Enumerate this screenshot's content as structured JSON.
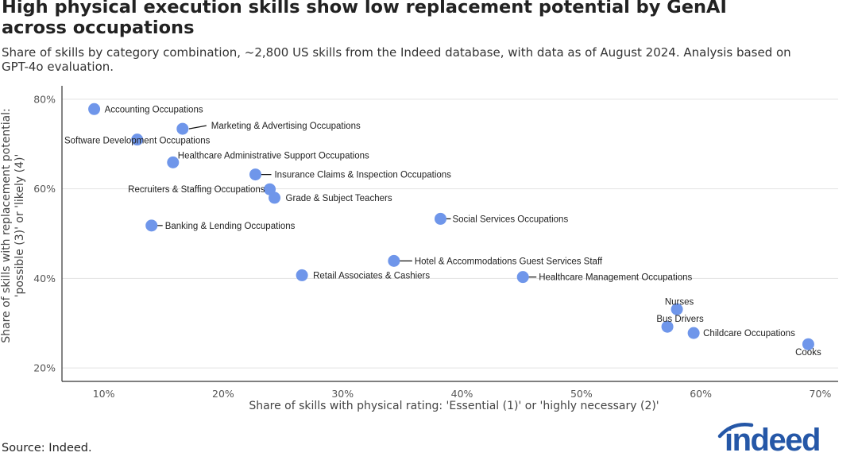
{
  "title": "High physical execution skills show low replacement potential by GenAI across occupations",
  "subtitle": "Share of skills by category combination, ~2,800 US skills from the Indeed database, with data as of August 2024. Analysis based on GPT-4o evaluation.",
  "source": "Source: Indeed.",
  "logo_text": "indeed",
  "colors": {
    "point": "#6f96ea",
    "grid": "#e3e3e3",
    "axis": "#333333",
    "brand": "#2557a7"
  },
  "chart_data": {
    "type": "scatter",
    "title": "High physical execution skills show low replacement potential by GenAI across occupations",
    "xlabel": "Share of skills with physical rating: 'Essential (1)' or 'highly necessary (2)'",
    "ylabel": [
      "Share of skills with replacement potential:",
      "'possible (3)' or 'likely (4)'"
    ],
    "xlim": [
      6.5,
      71.5
    ],
    "ylim": [
      17,
      83
    ],
    "xticks": [
      10,
      20,
      30,
      40,
      50,
      60,
      70
    ],
    "xtick_labels": [
      "10%",
      "20%",
      "30%",
      "40%",
      "50%",
      "60%",
      "70%"
    ],
    "yticks": [
      20,
      40,
      60,
      80
    ],
    "ytick_labels": [
      "20%",
      "40%",
      "60%",
      "80%"
    ],
    "grid": "horizontal",
    "points": [
      {
        "label": "Accounting Occupations",
        "x": 9.2,
        "y": 77.8
      },
      {
        "label": "Marketing & Advertising Occupations",
        "x": 16.6,
        "y": 73.4
      },
      {
        "label": "Software Development Occupations",
        "x": 12.8,
        "y": 71.0
      },
      {
        "label": "Healthcare Administrative Support Occupations",
        "x": 15.8,
        "y": 65.9
      },
      {
        "label": "Insurance Claims & Inspection Occupations",
        "x": 22.7,
        "y": 63.2
      },
      {
        "label": "Recruiters & Staffing Occupations",
        "x": 23.9,
        "y": 59.9
      },
      {
        "label": "Grade & Subject Teachers",
        "x": 24.3,
        "y": 58.0
      },
      {
        "label": "Social Services Occupations",
        "x": 38.2,
        "y": 53.3
      },
      {
        "label": "Banking & Lending Occupations",
        "x": 14.0,
        "y": 51.8
      },
      {
        "label": "Hotel & Accommodations Guest Services Staff",
        "x": 34.3,
        "y": 43.9
      },
      {
        "label": "Retail Associates & Cashiers",
        "x": 26.6,
        "y": 40.7
      },
      {
        "label": "Healthcare Management Occupations",
        "x": 45.1,
        "y": 40.3
      },
      {
        "label": "Nurses",
        "x": 58.0,
        "y": 33.1
      },
      {
        "label": "Bus Drivers",
        "x": 57.2,
        "y": 29.2
      },
      {
        "label": "Childcare Occupations",
        "x": 59.4,
        "y": 27.8
      },
      {
        "label": "Cooks",
        "x": 69.0,
        "y": 25.3
      }
    ]
  }
}
